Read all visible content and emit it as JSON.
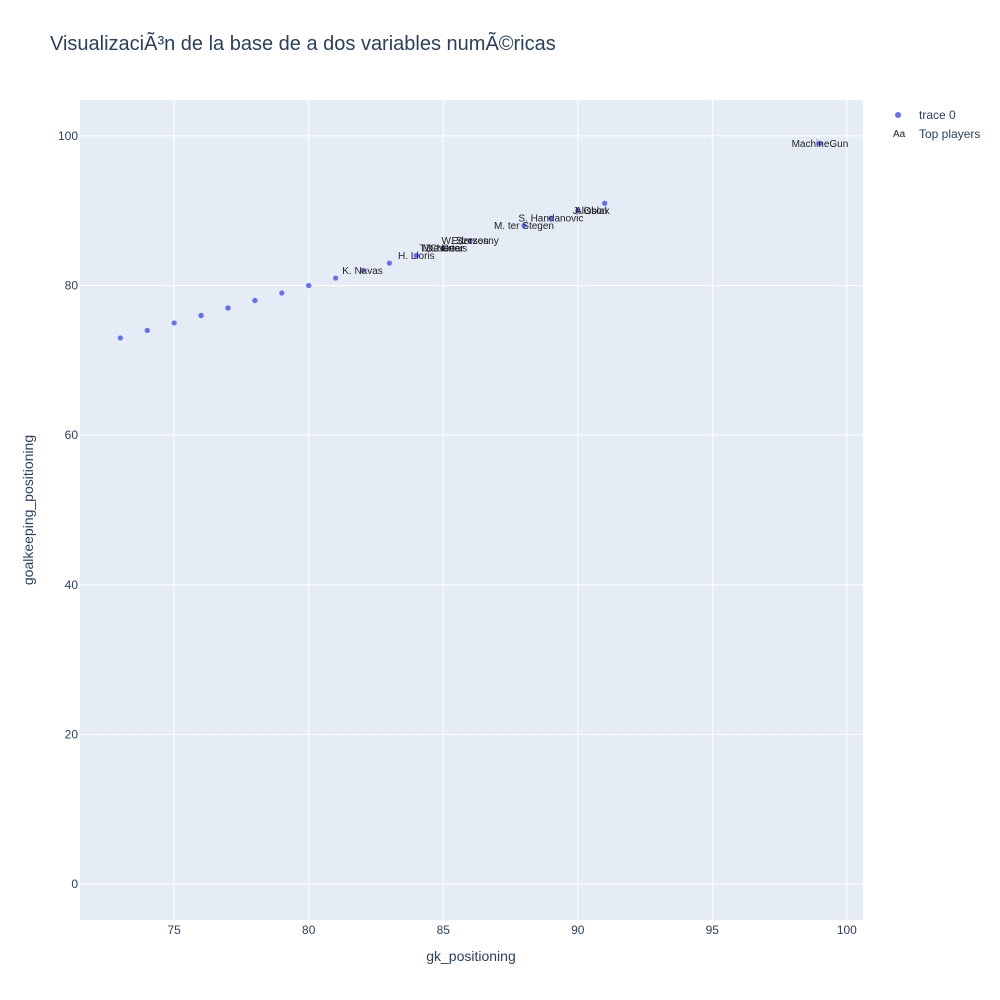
{
  "chart_data": {
    "type": "scatter",
    "title": "VisualizaciÃ³n de la base de a dos variables numÃ©ricas",
    "xlabel": "gk_positioning",
    "ylabel": "goalkeeping_positioning",
    "xlim": [
      71.5,
      100.6
    ],
    "ylim": [
      -4.8,
      104.8
    ],
    "xticks": [
      75,
      80,
      85,
      90,
      95,
      100
    ],
    "yticks": [
      0,
      20,
      40,
      60,
      80,
      100
    ],
    "grid": true,
    "legend_position": "top-right",
    "series": [
      {
        "name": "trace 0",
        "color": "#636efa",
        "x": [
          73,
          74,
          75,
          76,
          76,
          77,
          77,
          78,
          78,
          79,
          80,
          80,
          81,
          82,
          83,
          84,
          84,
          85,
          86,
          88,
          89,
          90,
          91,
          99
        ],
        "y": [
          73,
          74,
          75,
          76,
          76,
          77,
          77,
          78,
          78,
          79,
          80,
          80,
          81,
          82,
          83,
          84,
          84,
          85,
          86,
          88,
          89,
          90,
          91,
          99
        ]
      }
    ],
    "text_series": {
      "name": "Top players",
      "labels": [
        {
          "text": "MachineGun",
          "x": 99,
          "y": 99
        },
        {
          "text": "Alisson",
          "x": 90.5,
          "y": 90
        },
        {
          "text": "J. Oblak",
          "x": 90.5,
          "y": 90
        },
        {
          "text": "S. Handanovic",
          "x": 89,
          "y": 89
        },
        {
          "text": "M. ter Stegen",
          "x": 88,
          "y": 88
        },
        {
          "text": "W. Szczesny",
          "x": 86,
          "y": 86
        },
        {
          "text": "Ederson",
          "x": 86,
          "y": 86
        },
        {
          "text": "T. Courtois",
          "x": 85,
          "y": 85
        },
        {
          "text": "M. Neuer",
          "x": 85,
          "y": 85
        },
        {
          "text": "De Gea",
          "x": 85,
          "y": 85
        },
        {
          "text": "H. Lloris",
          "x": 84,
          "y": 84
        },
        {
          "text": "K. Navas",
          "x": 82,
          "y": 82
        }
      ]
    }
  },
  "legend": {
    "trace_label": "trace 0",
    "text_label": "Top players",
    "text_symbol": "Aa"
  }
}
